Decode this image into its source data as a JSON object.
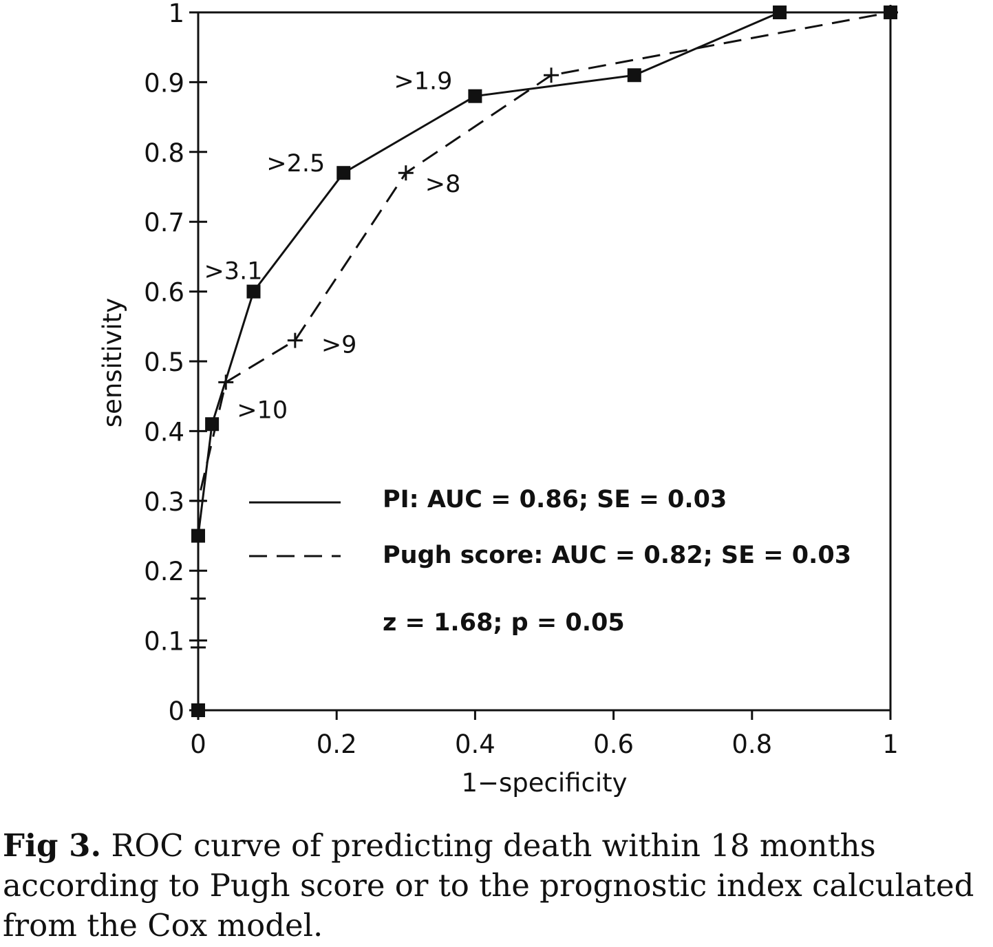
{
  "chart_data": {
    "type": "line",
    "xlabel": "1−specificity",
    "ylabel": "sensitivity",
    "xlim": [
      0,
      1
    ],
    "ylim": [
      0,
      1
    ],
    "x_ticks": [
      "0",
      "0.2",
      "0.4",
      "0.6",
      "0.8",
      "1"
    ],
    "y_ticks": [
      "0",
      "0.1",
      "0.2",
      "0.3",
      "0.4",
      "0.5",
      "0.6",
      "0.7",
      "0.8",
      "0.9",
      "1"
    ],
    "grid": false,
    "series": [
      {
        "name": "PI: AUC = 0.86; SE = 0.03",
        "line_style": "solid",
        "marker": "square",
        "points": [
          {
            "x": 0.0,
            "y": 0.0
          },
          {
            "x": 0.0,
            "y": 0.25
          },
          {
            "x": 0.02,
            "y": 0.41
          },
          {
            "x": 0.08,
            "y": 0.6,
            "label": ">3.1"
          },
          {
            "x": 0.21,
            "y": 0.77,
            "label": ">2.5"
          },
          {
            "x": 0.4,
            "y": 0.88,
            "label": ">1.9"
          },
          {
            "x": 0.63,
            "y": 0.91
          },
          {
            "x": 0.84,
            "y": 1.0
          },
          {
            "x": 1.0,
            "y": 1.0
          }
        ]
      },
      {
        "name": "Pugh score: AUC = 0.82; SE = 0.03",
        "line_style": "dashed",
        "marker": "plus",
        "points": [
          {
            "x": 0.0,
            "y": 0.0
          },
          {
            "x": 0.0,
            "y": 0.09
          },
          {
            "x": 0.0,
            "y": 0.16
          },
          {
            "x": 0.0,
            "y": 0.3
          },
          {
            "x": 0.04,
            "y": 0.47,
            "label": ">10"
          },
          {
            "x": 0.14,
            "y": 0.53,
            "label": ">9"
          },
          {
            "x": 0.3,
            "y": 0.77,
            "label": ">8"
          },
          {
            "x": 0.51,
            "y": 0.91
          },
          {
            "x": 1.0,
            "y": 1.0
          }
        ]
      }
    ],
    "annotations": [
      "z = 1.68; p = 0.05"
    ]
  },
  "legend": {
    "pi_label": "PI: AUC = 0.86; SE = 0.03",
    "pugh_label": "Pugh score: AUC = 0.82; SE = 0.03",
    "stats": "z = 1.68; p = 0.05"
  },
  "caption": {
    "label": "Fig 3.",
    "text": "ROC curve of predicting death within 18 months according to Pugh score or to the prognostic index calculated from the Cox model."
  }
}
